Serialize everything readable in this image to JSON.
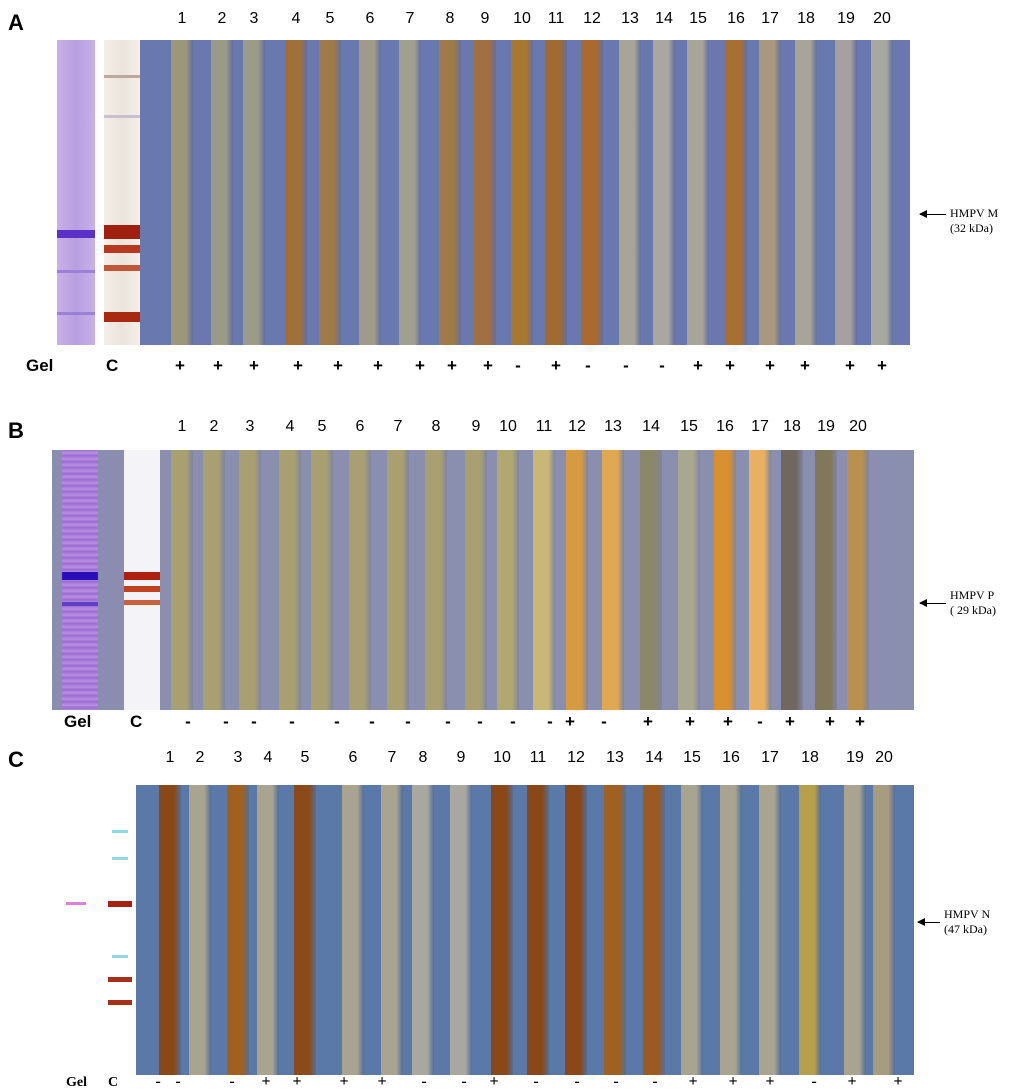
{
  "panels": [
    {
      "letter": "A",
      "gel_label": "Gel",
      "control_label": "C",
      "lane_numbers": [
        "1",
        "2",
        "3",
        "4",
        "5",
        "6",
        "7",
        "8",
        "9",
        "10",
        "11",
        "12",
        "13",
        "14",
        "15",
        "16",
        "17",
        "18",
        "19",
        "20"
      ],
      "results": [
        "+",
        "+",
        "+",
        "+",
        "+",
        "+",
        "+",
        "+",
        "+",
        "-",
        "+",
        "-",
        "-",
        "-",
        "+",
        "+",
        "+",
        "+",
        "+",
        "+"
      ],
      "annotation": {
        "protein": "HMPV M",
        "size": "(32 kDa)"
      },
      "strip_colors": [
        "#9a9878",
        "#9a9a88",
        "#9c9a88",
        "#a07038",
        "#a07a48",
        "#a09a88",
        "#a0a090",
        "#a07a48",
        "#a07040",
        "#a87830",
        "#a06a30",
        "#a86a30",
        "#a8a498",
        "#a8a8a0",
        "#a8a498",
        "#a87030",
        "#a89880",
        "#a8a498",
        "#a8a0a0",
        "#a8a8a0"
      ],
      "divider_color": "#6a78b0"
    },
    {
      "letter": "B",
      "gel_label": "Gel",
      "control_label": "C",
      "lane_numbers": [
        "1",
        "2",
        "3",
        "4",
        "5",
        "6",
        "7",
        "8",
        "9",
        "10",
        "11",
        "12",
        "13",
        "14",
        "15",
        "16",
        "17",
        "18",
        "19",
        "20"
      ],
      "results": [
        "-",
        "-",
        "-",
        "-",
        "-",
        "-",
        "-",
        "-",
        "-",
        "-",
        "-",
        "+",
        "-",
        "+",
        "+",
        "+",
        "-",
        "+",
        "+",
        "+"
      ],
      "annotation": {
        "protein": "HMPV P",
        "size": "( 29 kDa)"
      },
      "strip_colors": [
        "#a8a070",
        "#a8a070",
        "#a8a070",
        "#a8a070",
        "#a8a070",
        "#a8a070",
        "#a8a070",
        "#a8a070",
        "#a8a070",
        "#b0a870",
        "#c8b878",
        "#d89a40",
        "#e0a850",
        "#8a8868",
        "#a8a890",
        "#d89030",
        "#e8b060",
        "#706860",
        "#807858",
        "#b89050"
      ],
      "divider_color": "#8a8fb0"
    },
    {
      "letter": "C",
      "gel_label": "Gel",
      "control_label": "C",
      "lane_numbers": [
        "1",
        "2",
        "3",
        "4",
        "5",
        "6",
        "7",
        "8",
        "9",
        "10",
        "11",
        "12",
        "13",
        "14",
        "15",
        "16",
        "17",
        "18",
        "19",
        "20"
      ],
      "results": [
        "-",
        "-",
        "-",
        "+",
        "+",
        "+",
        "+",
        "-",
        "-",
        "+",
        "-",
        "-",
        "-",
        "-",
        "+",
        "+",
        "+",
        "-",
        "+",
        "+"
      ],
      "annotation": {
        "protein": "HMPV N",
        "size": "(47 kDa)"
      },
      "strip_colors": [
        "#8a4818",
        "#a8a48e",
        "#a06020",
        "#a8a490",
        "#8a4a1a",
        "#a8a490",
        "#a8a490",
        "#a8a8a0",
        "#a8a8a0",
        "#8a4818",
        "#8a4818",
        "#8a4818",
        "#a06020",
        "#9a5a20",
        "#a8a490",
        "#a8a490",
        "#a8a490",
        "#b8a048",
        "#a8a490",
        "#a89c80"
      ],
      "divider_color": "#5a78a8"
    }
  ]
}
